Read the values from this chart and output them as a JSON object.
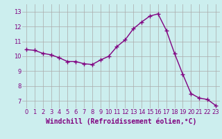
{
  "x": [
    0,
    1,
    2,
    3,
    4,
    5,
    6,
    7,
    8,
    9,
    10,
    11,
    12,
    13,
    14,
    15,
    16,
    17,
    18,
    19,
    20,
    21,
    22,
    23
  ],
  "y": [
    10.45,
    10.4,
    10.2,
    10.1,
    9.9,
    9.65,
    9.65,
    9.5,
    9.45,
    9.75,
    10.0,
    10.65,
    11.1,
    11.85,
    12.3,
    12.7,
    12.85,
    11.75,
    10.2,
    8.8,
    7.5,
    7.2,
    7.1,
    6.7
  ],
  "xlabel": "Windchill (Refroidissement éolien,°C)",
  "xticks": [
    0,
    1,
    2,
    3,
    4,
    5,
    6,
    7,
    8,
    9,
    10,
    11,
    12,
    13,
    14,
    15,
    16,
    17,
    18,
    19,
    20,
    21,
    22,
    23
  ],
  "yticks": [
    7,
    8,
    9,
    10,
    11,
    12,
    13
  ],
  "ylim": [
    6.5,
    13.5
  ],
  "xlim": [
    -0.5,
    23.5
  ],
  "line_color": "#800080",
  "marker": "+",
  "marker_size": 4,
  "bg_color": "#cceeee",
  "grid_color": "#aaaaaa",
  "tick_label_color": "#800080",
  "xlabel_color": "#800080",
  "xlabel_fontsize": 7,
  "tick_fontsize": 6,
  "line_width": 1.0
}
